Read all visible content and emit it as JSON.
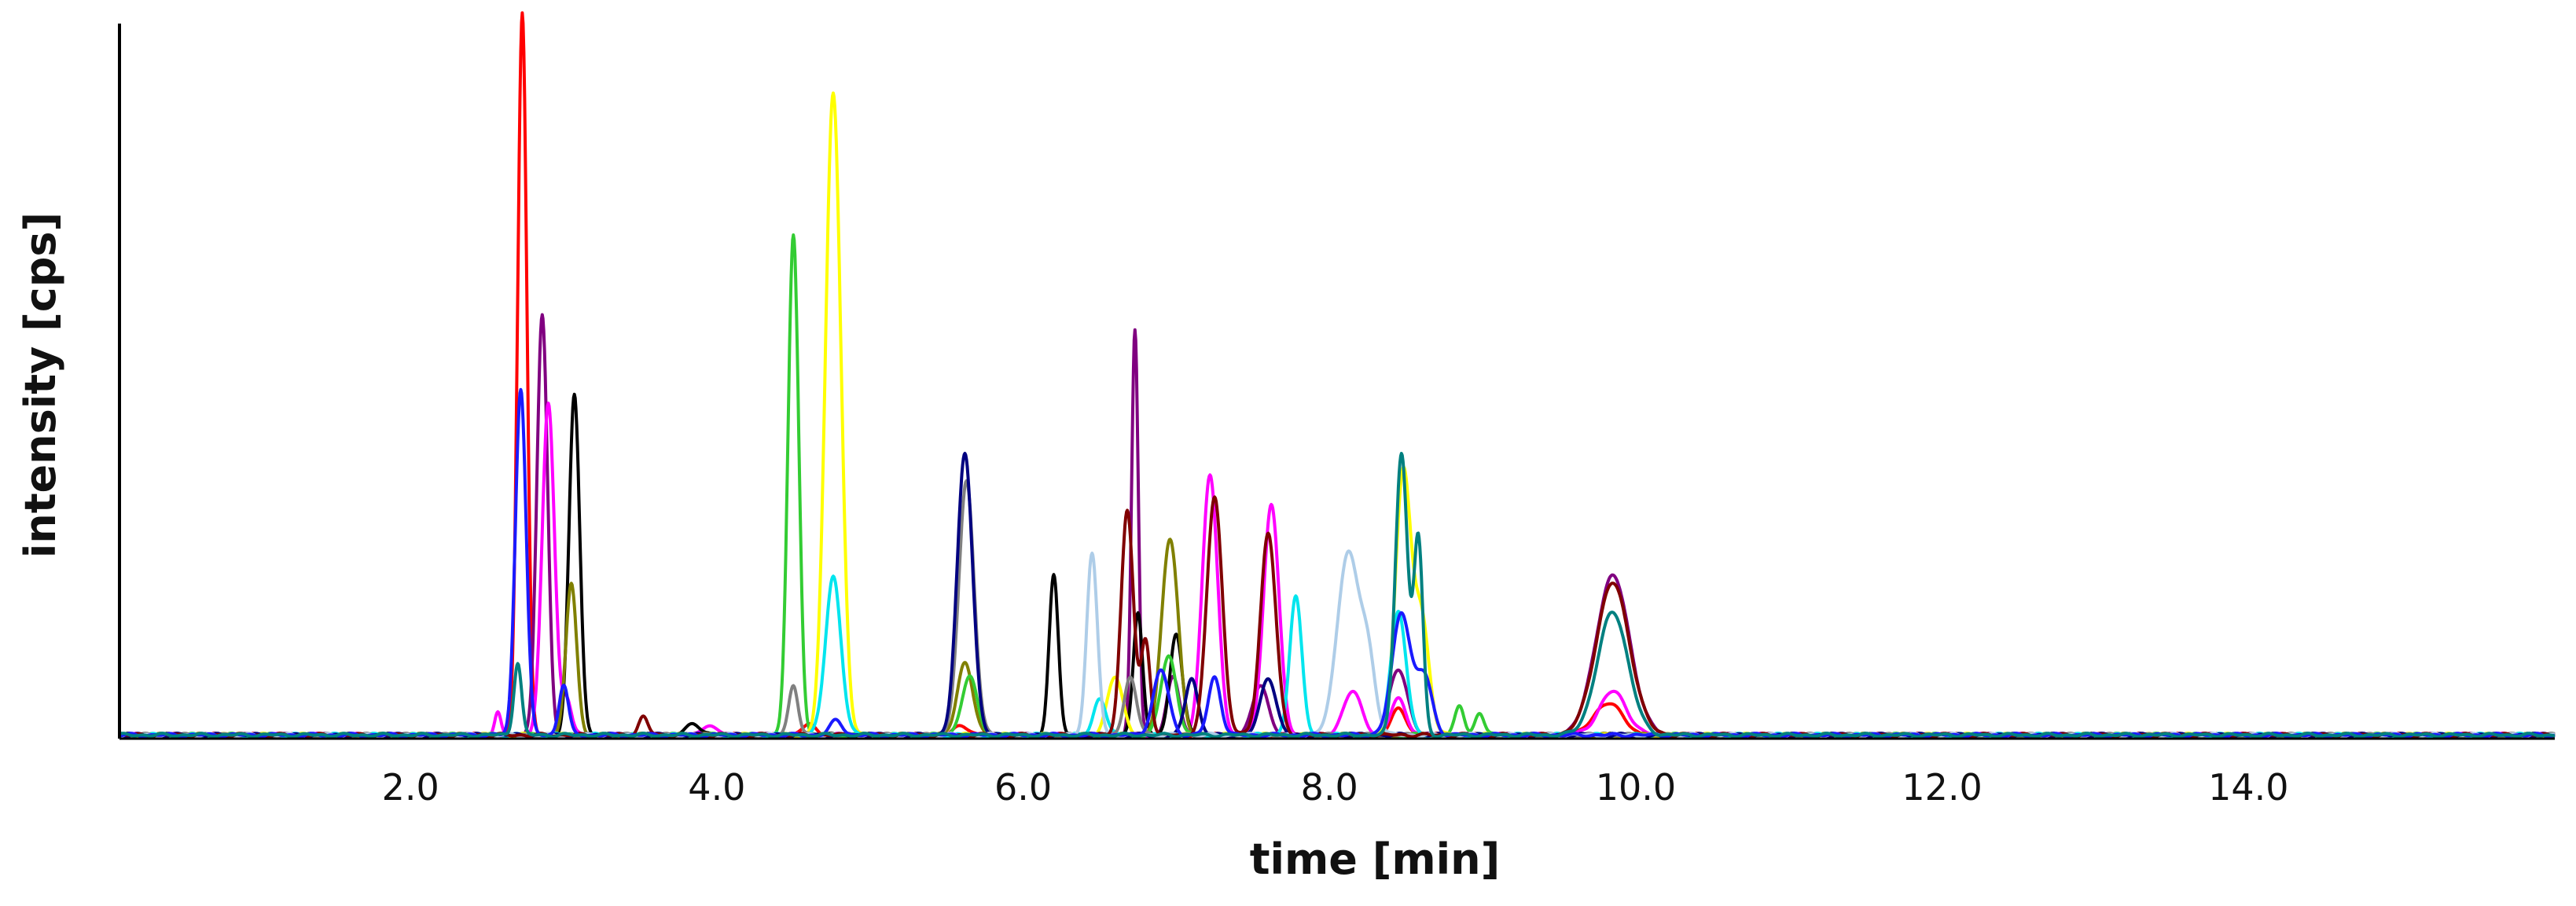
{
  "chart_data": {
    "type": "line",
    "xlabel": "time [min]",
    "ylabel": "intensity [cps]",
    "xlim": [
      0.1,
      16.0
    ],
    "ylim": [
      0,
      100
    ],
    "x_ticks": [
      2.0,
      4.0,
      6.0,
      8.0,
      10.0,
      12.0,
      14.0
    ],
    "x_tick_labels": [
      "2.0",
      "4.0",
      "6.0",
      "8.0",
      "10.0",
      "12.0",
      "14.0"
    ],
    "grid": false,
    "legend": "none",
    "baseline": 0.5,
    "series": [
      {
        "color": "#ff0000",
        "peaks": [
          [
            2.73,
            100,
            0.03
          ],
          [
            4.6,
            1.5,
            0.04
          ],
          [
            5.6,
            1.2,
            0.05
          ],
          [
            8.45,
            3.5,
            0.05
          ],
          [
            9.82,
            4.5,
            0.09
          ]
        ]
      },
      {
        "color": "#800080",
        "peaks": [
          [
            2.86,
            58,
            0.035
          ],
          [
            6.73,
            56,
            0.022
          ],
          [
            6.98,
            8,
            0.04
          ],
          [
            7.55,
            7,
            0.05
          ],
          [
            8.45,
            9,
            0.06
          ],
          [
            9.85,
            22,
            0.11
          ]
        ]
      },
      {
        "color": "#ff00ff",
        "peaks": [
          [
            2.57,
            3,
            0.02
          ],
          [
            2.9,
            46,
            0.04
          ],
          [
            3.02,
            5,
            0.03
          ],
          [
            3.95,
            1.5,
            0.04
          ],
          [
            7.22,
            36,
            0.05
          ],
          [
            7.62,
            32,
            0.05
          ],
          [
            8.15,
            6,
            0.06
          ],
          [
            8.45,
            5,
            0.05
          ],
          [
            9.85,
            6,
            0.09
          ]
        ]
      },
      {
        "color": "#000000",
        "peaks": [
          [
            3.07,
            47,
            0.035
          ],
          [
            3.85,
            1.5,
            0.05
          ],
          [
            6.2,
            22,
            0.03
          ],
          [
            6.75,
            17,
            0.03
          ],
          [
            7.0,
            14,
            0.04
          ]
        ]
      },
      {
        "color": "#808000",
        "peaks": [
          [
            3.05,
            21,
            0.035
          ],
          [
            5.62,
            10,
            0.05
          ],
          [
            6.95,
            24,
            0.05
          ],
          [
            7.0,
            6,
            0.04
          ]
        ]
      },
      {
        "color": "#33cc33",
        "peaks": [
          [
            4.5,
            69,
            0.035
          ],
          [
            5.65,
            8,
            0.05
          ],
          [
            6.95,
            11,
            0.05
          ],
          [
            8.85,
            4,
            0.03
          ],
          [
            8.98,
            3,
            0.03
          ]
        ]
      },
      {
        "color": "#ffff00",
        "peaks": [
          [
            4.76,
            89,
            0.05
          ],
          [
            6.6,
            8,
            0.05
          ],
          [
            8.48,
            36,
            0.05
          ],
          [
            8.6,
            16,
            0.05
          ]
        ]
      },
      {
        "color": "#00e5ee",
        "peaks": [
          [
            4.76,
            22,
            0.05
          ],
          [
            6.5,
            5,
            0.04
          ],
          [
            7.78,
            19,
            0.04
          ],
          [
            8.45,
            17,
            0.05
          ]
        ]
      },
      {
        "color": "#808080",
        "peaks": [
          [
            4.5,
            7,
            0.03
          ],
          [
            5.63,
            35,
            0.05
          ],
          [
            6.7,
            8,
            0.04
          ]
        ]
      },
      {
        "color": "#000080",
        "peaks": [
          [
            5.62,
            39,
            0.05
          ],
          [
            7.1,
            8,
            0.04
          ],
          [
            7.6,
            8,
            0.05
          ]
        ]
      },
      {
        "color": "#aecde8",
        "peaks": [
          [
            6.45,
            25,
            0.035
          ],
          [
            8.12,
            25,
            0.07
          ],
          [
            8.25,
            10,
            0.05
          ]
        ]
      },
      {
        "color": "#800000",
        "peaks": [
          [
            3.52,
            2.5,
            0.03
          ],
          [
            6.68,
            31,
            0.04
          ],
          [
            6.8,
            13,
            0.03
          ],
          [
            7.25,
            33,
            0.05
          ],
          [
            7.6,
            28,
            0.05
          ],
          [
            9.85,
            21,
            0.11
          ]
        ]
      },
      {
        "color": "#1a1aff",
        "peaks": [
          [
            2.72,
            48,
            0.035
          ],
          [
            3.0,
            7,
            0.03
          ],
          [
            4.78,
            2,
            0.04
          ],
          [
            6.9,
            9,
            0.05
          ],
          [
            7.25,
            8,
            0.04
          ],
          [
            8.47,
            17,
            0.06
          ],
          [
            8.62,
            8,
            0.05
          ]
        ]
      },
      {
        "color": "#008080",
        "peaks": [
          [
            2.7,
            10,
            0.025
          ],
          [
            8.47,
            39,
            0.04
          ],
          [
            8.58,
            27,
            0.03
          ],
          [
            9.85,
            17,
            0.1
          ]
        ]
      }
    ]
  }
}
